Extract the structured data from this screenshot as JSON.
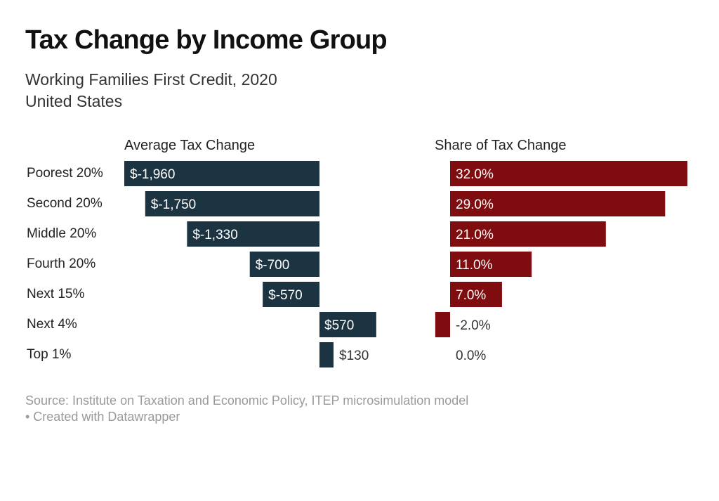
{
  "title": "Tax Change by Income Group",
  "subtitle_line1": "Working Families First Credit, 2020",
  "subtitle_line2": "United States",
  "footer_line1": "Source: Institute on Taxation and Economic Policy, ITEP microsimulation model",
  "footer_line2": "• Created with Datawrapper",
  "colors": {
    "avg": "#1c3342",
    "share": "#7f0c0e"
  },
  "chart_data": [
    {
      "type": "bar",
      "orientation": "horizontal",
      "title": "Average Tax Change",
      "categories": [
        "Poorest 20%",
        "Second 20%",
        "Middle 20%",
        "Fourth 20%",
        "Next 15%",
        "Next 4%",
        "Top 1%"
      ],
      "values": [
        -1960,
        -1750,
        -1330,
        -700,
        -570,
        570,
        130
      ],
      "labels": [
        "$-1,960",
        "$-1,750",
        "$-1,330",
        "$-700",
        "$-570",
        "$570",
        "$130"
      ],
      "xlim": [
        -1960,
        570
      ]
    },
    {
      "type": "bar",
      "orientation": "horizontal",
      "title": "Share of Tax Change",
      "categories": [
        "Poorest 20%",
        "Second 20%",
        "Middle 20%",
        "Fourth 20%",
        "Next 15%",
        "Next 4%",
        "Top 1%"
      ],
      "values": [
        32.0,
        29.0,
        21.0,
        11.0,
        7.0,
        -2.0,
        0.0
      ],
      "labels": [
        "32.0%",
        "29.0%",
        "21.0%",
        "11.0%",
        "7.0%",
        "-2.0%",
        "0.0%"
      ],
      "unit": "%",
      "xlim": [
        -2,
        32
      ]
    }
  ]
}
